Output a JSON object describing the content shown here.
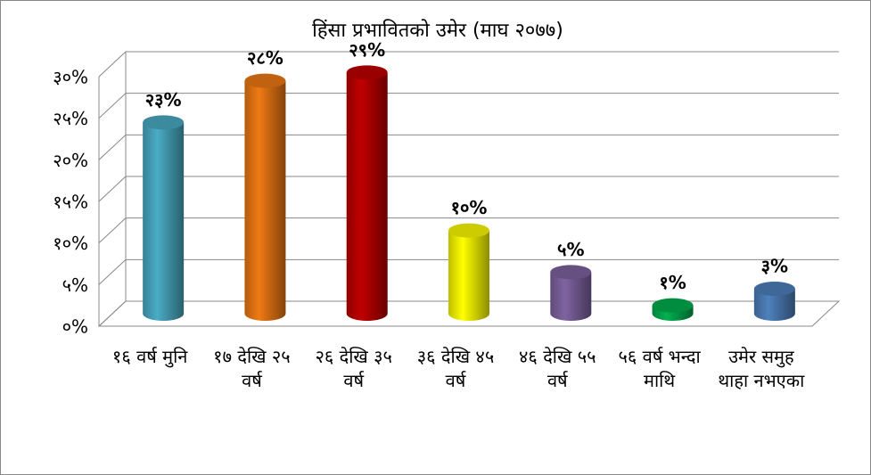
{
  "chart_data": {
    "type": "bar",
    "title": "हिंसा प्रभावितको उमेर (माघ २०७७)",
    "categories": [
      "१६ वर्ष मुनि",
      "१७ देखि २५ वर्ष",
      "२६ देखि ३५ वर्ष",
      "३६ देखि ४५ वर्ष",
      "४६ देखि ५५ वर्ष",
      "५६ वर्ष भन्दा माथि",
      "उमेर समुह थाहा नभएका"
    ],
    "values": [
      23,
      28,
      29,
      10,
      5,
      1,
      3
    ],
    "value_labels": [
      "२३%",
      "२८%",
      "२९%",
      "१०%",
      "५%",
      "१%",
      "३%"
    ],
    "colors": [
      "#4bacc6",
      "#f07a14",
      "#c00000",
      "#ffff00",
      "#8064a2",
      "#00b050",
      "#4f81bd"
    ],
    "ylim": [
      0,
      30
    ],
    "yticks": [
      {
        "value": 0,
        "label": "०%"
      },
      {
        "value": 5,
        "label": "५%"
      },
      {
        "value": 10,
        "label": "१०%"
      },
      {
        "value": 15,
        "label": "१५%"
      },
      {
        "value": 20,
        "label": "२०%"
      },
      {
        "value": 25,
        "label": "२५%"
      },
      {
        "value": 30,
        "label": "३०%"
      }
    ],
    "grid": true
  }
}
